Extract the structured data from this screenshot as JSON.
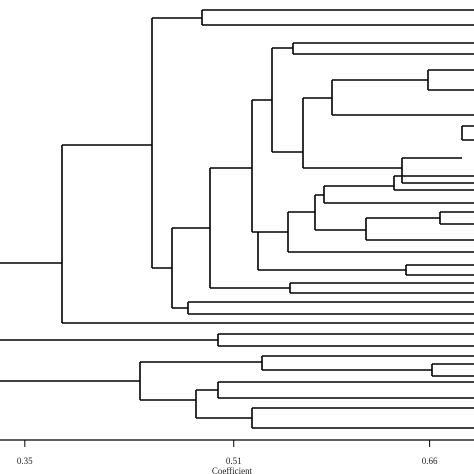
{
  "chart_data": {
    "type": "dendrogram",
    "xlabel": "Coefficient",
    "xlim": [
      0.331,
      0.694
    ],
    "xticks": [
      0.35,
      0.51,
      0.66
    ]
  }
}
